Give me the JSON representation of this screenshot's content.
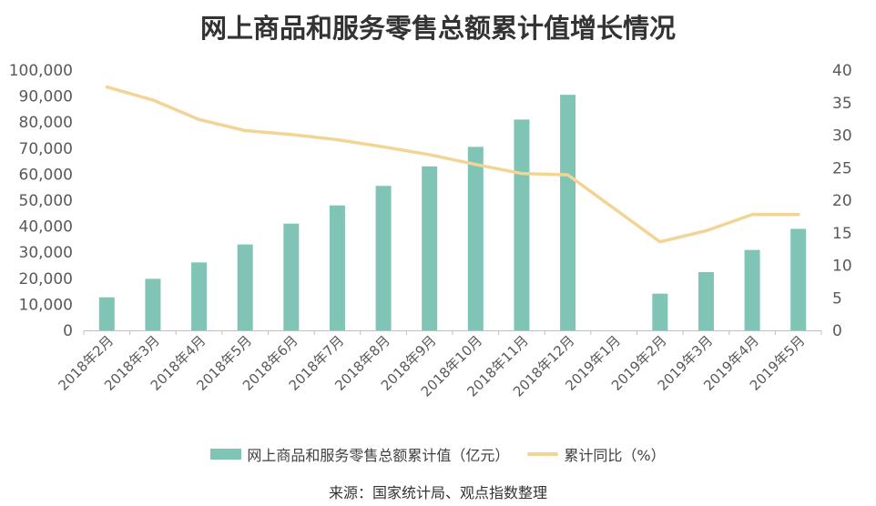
{
  "chart_data": {
    "type": "bar",
    "title": "网上商品和服务零售总额累计值增长情况",
    "categories": [
      "2018年2月",
      "2018年3月",
      "2018年4月",
      "2018年5月",
      "2018年6月",
      "2018年7月",
      "2018年8月",
      "2018年9月",
      "2018年10月",
      "2018年11月",
      "2018年12月",
      "2019年1月",
      "2019年2月",
      "2019年3月",
      "2019年4月",
      "2019年5月"
    ],
    "series": [
      {
        "name": "网上商品和服务零售总额累计值（亿元）",
        "type": "bar",
        "axis": "left",
        "color": "#80c4b6",
        "values": [
          12700,
          19800,
          26100,
          33000,
          41000,
          48000,
          55500,
          63000,
          70500,
          81000,
          90500,
          null,
          14100,
          22400,
          30900,
          39000
        ]
      },
      {
        "name": "累计同比（%）",
        "type": "line",
        "axis": "right",
        "color": "#f2d596",
        "values": [
          37.4,
          35.4,
          32.4,
          30.7,
          30.1,
          29.3,
          28.2,
          27.0,
          25.5,
          24.1,
          23.9,
          null,
          13.6,
          15.3,
          17.8,
          17.8
        ]
      }
    ],
    "y_left": {
      "ylim": [
        0,
        100000
      ],
      "ticks": [
        "0",
        "10,000",
        "20,000",
        "30,000",
        "40,000",
        "50,000",
        "60,000",
        "70,000",
        "80,000",
        "90,000",
        "100,000"
      ]
    },
    "y_right": {
      "ylim": [
        0,
        40
      ],
      "ticks": [
        "0",
        "5",
        "10",
        "15",
        "20",
        "25",
        "30",
        "35",
        "40"
      ]
    },
    "legend_position": "bottom",
    "grid": false
  },
  "source_note": "来源：国家统计局、观点指数整理"
}
